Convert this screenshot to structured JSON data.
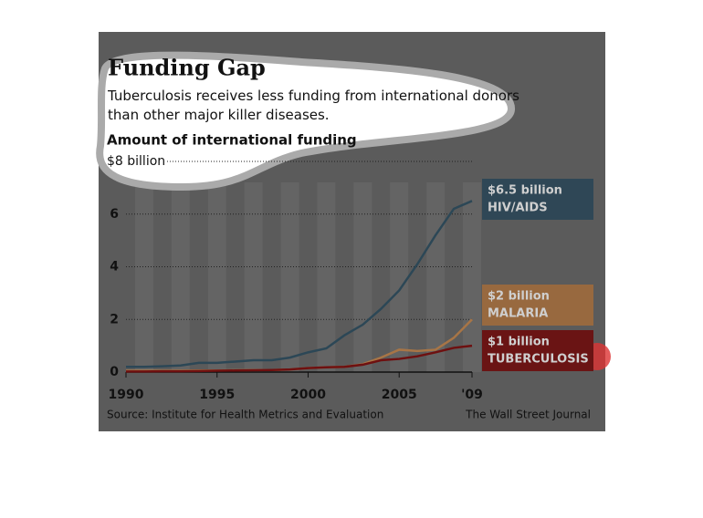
{
  "chart_data": {
    "type": "line",
    "title": "Funding Gap",
    "subtitle": "Tuberculosis receives less funding from international donors than other major killer diseases.",
    "y_label": "Amount of international funding",
    "source": "Source: Institute for Health Metrics and Evaluation",
    "credit": "The Wall Street Journal",
    "x": [
      1990,
      1991,
      1992,
      1993,
      1994,
      1995,
      1996,
      1997,
      1998,
      1999,
      2000,
      2001,
      2002,
      2003,
      2004,
      2005,
      2006,
      2007,
      2008,
      2009
    ],
    "xlim": [
      1990,
      2009
    ],
    "xticks": [
      1990,
      1995,
      2000,
      2005,
      {
        "value": 2009,
        "label": "'09"
      }
    ],
    "ylim": [
      0,
      8
    ],
    "yticks": [
      0,
      2,
      4,
      6,
      {
        "value": 8,
        "label": "$8 billion"
      }
    ],
    "grid": true,
    "series": [
      {
        "name": "HIV/AIDS",
        "end_label": "$6.5 billion",
        "color": "#2c4756",
        "box_color": "#2f4756",
        "values": [
          0.2,
          0.2,
          0.22,
          0.25,
          0.35,
          0.35,
          0.4,
          0.45,
          0.45,
          0.55,
          0.75,
          0.9,
          1.4,
          1.8,
          2.4,
          3.1,
          4.1,
          5.2,
          6.2,
          6.5
        ]
      },
      {
        "name": "MALARIA",
        "end_label": "$2 billion",
        "color": "#a87546",
        "box_color": "#98693f",
        "values": [
          0.05,
          0.05,
          0.05,
          0.05,
          0.06,
          0.06,
          0.07,
          0.08,
          0.08,
          0.1,
          0.15,
          0.18,
          0.2,
          0.3,
          0.55,
          0.85,
          0.8,
          0.85,
          1.3,
          2
        ]
      },
      {
        "name": "TUBERCULOSIS",
        "end_label": "$1 billion",
        "color": "#6e1010",
        "box_color": "#6a1414",
        "values": [
          0.02,
          0.02,
          0.03,
          0.03,
          0.04,
          0.05,
          0.06,
          0.07,
          0.08,
          0.1,
          0.15,
          0.18,
          0.2,
          0.28,
          0.45,
          0.5,
          0.6,
          0.75,
          0.92,
          1.0
        ]
      }
    ]
  }
}
